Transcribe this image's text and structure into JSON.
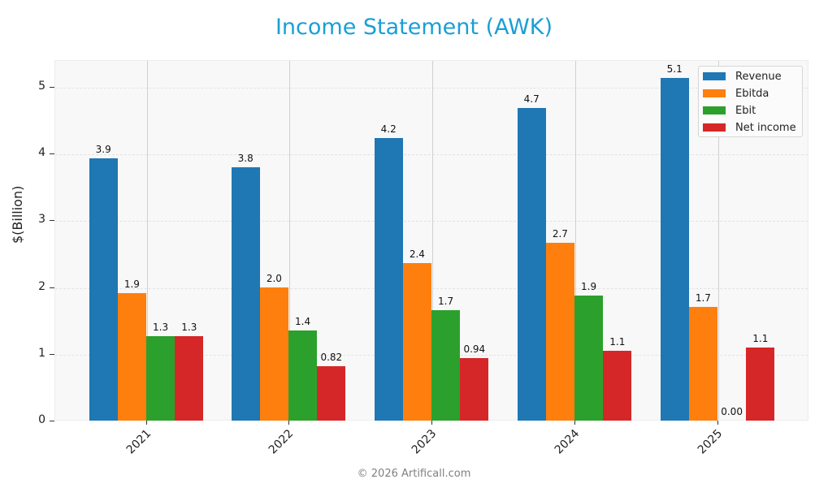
{
  "title": "Income Statement (AWK)",
  "footer": "© 2026 Artificall.com",
  "yaxis": {
    "label": "$(Billion)",
    "ticks": [
      "0",
      "1",
      "2",
      "3",
      "4",
      "5"
    ]
  },
  "legend": [
    {
      "label": "Revenue",
      "color": "#1f77b4"
    },
    {
      "label": "Ebitda",
      "color": "#ff7f0e"
    },
    {
      "label": "Ebit",
      "color": "#2ca02c"
    },
    {
      "label": "Net income",
      "color": "#d62728"
    }
  ],
  "categories": [
    "2021",
    "2022",
    "2023",
    "2024",
    "2025"
  ],
  "bar_labels": {
    "revenue": [
      "3.9",
      "3.8",
      "4.2",
      "4.7",
      "5.1"
    ],
    "ebitda": [
      "1.9",
      "2.0",
      "2.4",
      "2.7",
      "1.7"
    ],
    "ebit": [
      "1.3",
      "1.4",
      "1.7",
      "1.9",
      "0.00"
    ],
    "net_income": [
      "1.3",
      "0.82",
      "0.94",
      "1.1",
      "1.1"
    ]
  },
  "chart_data": {
    "type": "bar",
    "title": "Income Statement (AWK)",
    "xlabel": "",
    "ylabel": "$(Billion)",
    "categories": [
      "2021",
      "2022",
      "2023",
      "2024",
      "2025"
    ],
    "series": [
      {
        "name": "Revenue",
        "color": "#1f77b4",
        "values": [
          3.93,
          3.79,
          4.23,
          4.68,
          5.13
        ]
      },
      {
        "name": "Ebitda",
        "color": "#ff7f0e",
        "values": [
          1.91,
          1.99,
          2.36,
          2.67,
          1.7
        ]
      },
      {
        "name": "Ebit",
        "color": "#2ca02c",
        "values": [
          1.26,
          1.35,
          1.65,
          1.87,
          0.0
        ]
      },
      {
        "name": "Net income",
        "color": "#d62728",
        "values": [
          1.26,
          0.82,
          0.94,
          1.05,
          1.1
        ]
      }
    ],
    "ylim": [
      0,
      5.4
    ],
    "yticks": [
      0,
      1,
      2,
      3,
      4,
      5
    ],
    "grid": true,
    "legend_position": "upper right"
  }
}
